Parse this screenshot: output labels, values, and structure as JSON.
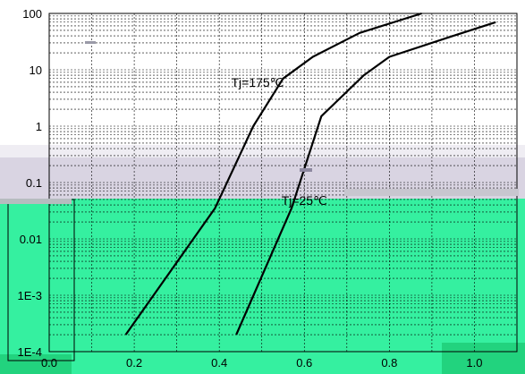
{
  "chart_data": {
    "type": "line",
    "title": "",
    "xlabel": "",
    "ylabel": "",
    "x_scale": "linear",
    "y_scale": "log",
    "xlim": [
      0.0,
      1.1
    ],
    "ylim": [
      0.0001,
      100
    ],
    "x_ticks": [
      "0.0",
      "0.2",
      "0.4",
      "0.6",
      "0.8",
      "1.0"
    ],
    "y_ticks": [
      "1E-4",
      "1E-3",
      "0.01",
      "0.1",
      "1",
      "10",
      "100"
    ],
    "grid": true,
    "series": [
      {
        "color": "#000000",
        "points": [
          [
            0.18,
            0.0002
          ],
          [
            0.39,
            0.035
          ],
          [
            0.48,
            1.0
          ],
          [
            0.55,
            7
          ],
          [
            0.62,
            17
          ],
          [
            0.73,
            45
          ],
          [
            0.95,
            150
          ]
        ]
      },
      {
        "color": "#000000",
        "points": [
          [
            0.44,
            0.0002
          ],
          [
            0.57,
            0.035
          ],
          [
            0.64,
            1.5
          ],
          [
            0.74,
            8
          ],
          [
            0.8,
            17
          ],
          [
            0.95,
            40
          ],
          [
            1.05,
            70
          ]
        ]
      }
    ],
    "annotations": [
      {
        "text": "Tj=175℃",
        "x": 0.49,
        "y": 5
      },
      {
        "text": "Tj=25℃",
        "x": 0.6,
        "y": 0.04
      }
    ]
  }
}
